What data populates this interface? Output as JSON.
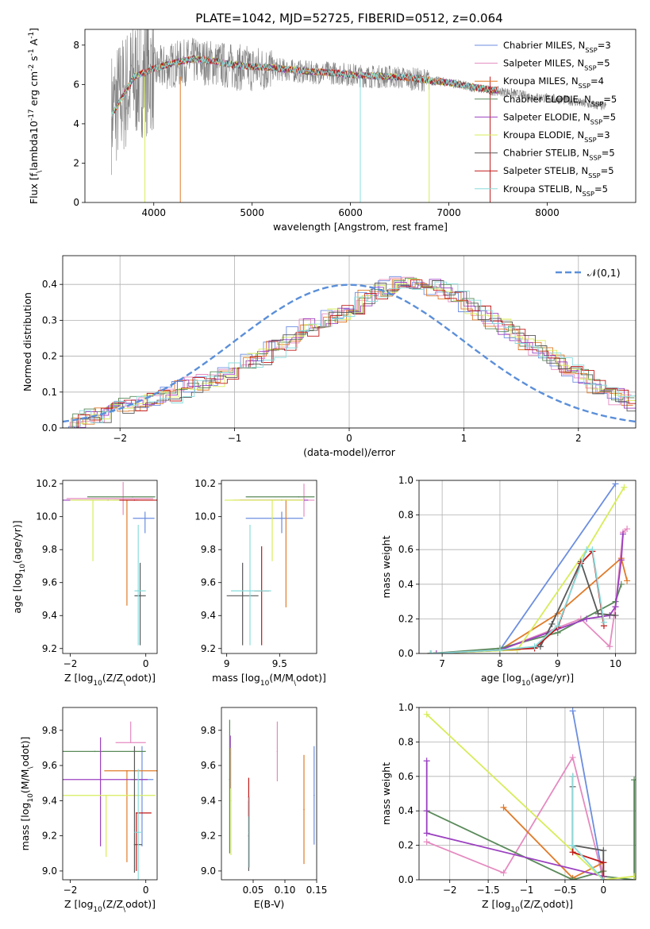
{
  "figure_title": "PLATE=1042, MJD=52725, FIBERID=0512, z=0.064",
  "model_colors": [
    "#6c8ee0",
    "#e58ac0",
    "#e07b2a",
    "#5a8a5a",
    "#9b40c0",
    "#d8ec5a",
    "#585858",
    "#c01818",
    "#88dcdc"
  ],
  "chart_data": [
    {
      "id": "spectrum",
      "type": "line",
      "title": "PLATE=1042, MJD=52725, FIBERID=0512, z=0.064",
      "xlabel": "wavelength [Angstrom, rest frame]",
      "ylabel": "Flux [f$_\\lambda$10$^{-17}$ erg cm$^{-2}$ s$^{-1}$ A$^{-1}$]",
      "xlim": [
        3300,
        8900
      ],
      "ylim": [
        0,
        8.8
      ],
      "xticks": [
        4000,
        5000,
        6000,
        7000,
        8000
      ],
      "yticks": [
        0,
        2,
        4,
        6,
        8
      ],
      "grid": false,
      "legend_position": "top-right",
      "data_series": {
        "name": "",
        "color": "#808080",
        "x": [
          3570,
          3800,
          4000,
          4200,
          4400,
          4600,
          4800,
          5000,
          5200,
          5400,
          5600,
          5800,
          6000,
          6200,
          6400,
          6600,
          6800,
          7000,
          7200,
          7400,
          7600,
          7800,
          8000,
          8200,
          8400,
          8600
        ],
        "y": [
          4.6,
          6.3,
          6.7,
          7.0,
          7.2,
          7.1,
          6.9,
          6.8,
          6.8,
          6.7,
          6.6,
          6.6,
          6.5,
          6.4,
          6.4,
          6.3,
          6.2,
          6.1,
          5.9,
          5.7,
          5.6,
          5.4,
          5.3,
          5.2,
          5.0,
          4.9
        ]
      },
      "model_curve": {
        "x": [
          3570,
          3800,
          4000,
          4200,
          4400,
          4600,
          4800,
          5000,
          5200,
          5400,
          5600,
          5800,
          6000,
          6200,
          6400,
          6600,
          6800,
          7000,
          7200,
          7400,
          7500
        ],
        "y": [
          4.4,
          6.4,
          6.8,
          7.1,
          7.3,
          7.2,
          7.0,
          6.9,
          6.85,
          6.75,
          6.65,
          6.6,
          6.5,
          6.45,
          6.4,
          6.35,
          6.2,
          6.1,
          5.9,
          5.75,
          5.7
        ]
      },
      "series_names": [
        "Chabrier MILES, N$_{SSP}$=3",
        "Salpeter MILES, N$_{SSP}$=5",
        "Kroupa MILES, N$_{SSP}$=4",
        "Chabrier ELODIE, N$_{SSP}$=5",
        "Salpeter ELODIE, N$_{SSP}$=5",
        "Kroupa ELODIE, N$_{SSP}$=3",
        "Chabrier STELIB, N$_{SSP}$=5",
        "Salpeter STELIB, N$_{SSP}$=5",
        "Kroupa STELIB, N$_{SSP}$=5"
      ]
    },
    {
      "id": "residuals",
      "type": "line",
      "xlabel": "(data-model)/error",
      "ylabel": "Normed distribution",
      "xlim": [
        -2.5,
        2.5
      ],
      "ylim": [
        0,
        0.48
      ],
      "xticks": [
        -2,
        -1,
        0,
        1,
        2
      ],
      "yticks": [
        0.0,
        0.1,
        0.2,
        0.3,
        0.4
      ],
      "grid": true,
      "legend_position": "top-right",
      "normal_curve": {
        "name": "$\\mathcal{N}(0,1)$",
        "color": "#5b8fd9"
      },
      "histogram_bins": [
        -2.5,
        2.5,
        0.1
      ],
      "histogram_values": [
        0.02,
        0.025,
        0.03,
        0.04,
        0.05,
        0.06,
        0.07,
        0.08,
        0.085,
        0.09,
        0.11,
        0.12,
        0.13,
        0.14,
        0.16,
        0.17,
        0.19,
        0.2,
        0.22,
        0.24,
        0.26,
        0.28,
        0.29,
        0.31,
        0.32,
        0.34,
        0.36,
        0.38,
        0.39,
        0.41,
        0.41,
        0.4,
        0.39,
        0.38,
        0.36,
        0.34,
        0.32,
        0.3,
        0.28,
        0.26,
        0.24,
        0.22,
        0.2,
        0.18,
        0.16,
        0.14,
        0.12,
        0.1,
        0.085,
        0.07
      ]
    },
    {
      "id": "age-vs-Z",
      "type": "scatter",
      "xlabel": "Z [log$_{10}$($Z/Z_\\odot$)]",
      "ylabel": "age  [log$_{10}$($age/yr$)]",
      "xlim": [
        -2.2,
        0.3
      ],
      "ylim": [
        9.17,
        10.22
      ],
      "xticks": [
        -2,
        0
      ],
      "yticks": [
        9.2,
        9.4,
        9.6,
        9.8,
        10.0,
        10.2
      ],
      "points": [
        {
          "x": -0.02,
          "y": 9.99,
          "xerr": [
            0.32,
            0.25
          ],
          "yerr": [
            0.09,
            0.04
          ]
        },
        {
          "x": -0.6,
          "y": 10.11,
          "xerr": [
            1.5,
            0.8
          ],
          "yerr": [
            0.1,
            0.1
          ]
        },
        {
          "x": -0.5,
          "y": 10.1,
          "xerr": [
            0.35,
            0.7
          ],
          "yerr": [
            0.64,
            0.0
          ]
        },
        {
          "x": -0.35,
          "y": 10.12,
          "xerr": [
            1.2,
            0.6
          ],
          "yerr": [
            0.0,
            0.0
          ]
        },
        {
          "x": -1.0,
          "y": 10.1,
          "xerr": [
            1.2,
            0.8
          ],
          "yerr": [
            0.0,
            0.0
          ]
        },
        {
          "x": -1.4,
          "y": 10.1,
          "xerr": [
            0.6,
            1.0
          ],
          "yerr": [
            0.37,
            0.0
          ]
        },
        {
          "x": -0.15,
          "y": 9.52,
          "xerr": [
            0.15,
            0.15
          ],
          "yerr": [
            0.3,
            0.2
          ]
        },
        {
          "x": -0.3,
          "y": 10.1,
          "xerr": [
            0.4,
            0.7
          ],
          "yerr": [
            0.0,
            0.0
          ]
        },
        {
          "x": -0.2,
          "y": 9.55,
          "xerr": [
            0.1,
            0.2
          ],
          "yerr": [
            0.33,
            0.4
          ]
        }
      ]
    },
    {
      "id": "age-vs-mass",
      "type": "scatter",
      "xlabel": "mass [log$_{10}$($M/M_\\odot$)]",
      "ylabel": "",
      "xlim": [
        8.95,
        9.85
      ],
      "ylim": [
        9.17,
        10.22
      ],
      "xticks": [
        9.0,
        9.5
      ],
      "yticks": [
        9.2,
        9.4,
        9.6,
        9.8,
        10.0,
        10.2
      ],
      "points": [
        {
          "x": 9.52,
          "y": 9.99,
          "xerr": [
            0.34,
            0.2
          ],
          "yerr": [
            0.09,
            0.04
          ]
        },
        {
          "x": 9.73,
          "y": 10.1,
          "xerr": [
            0.6,
            0.1
          ],
          "yerr": [
            0.1,
            0.1
          ]
        },
        {
          "x": 9.56,
          "y": 10.1,
          "xerr": [
            0.5,
            0.15
          ],
          "yerr": [
            0.65,
            0.0
          ]
        },
        {
          "x": 9.68,
          "y": 10.12,
          "xerr": [
            0.5,
            0.15
          ],
          "yerr": [
            0.0,
            0.0
          ]
        },
        {
          "x": 9.52,
          "y": 10.1,
          "xerr": [
            0.4,
            0.25
          ],
          "yerr": [
            0.0,
            0.0
          ]
        },
        {
          "x": 9.43,
          "y": 10.1,
          "xerr": [
            0.45,
            0.3
          ],
          "yerr": [
            0.37,
            0.0
          ]
        },
        {
          "x": 9.15,
          "y": 9.52,
          "xerr": [
            0.15,
            0.15
          ],
          "yerr": [
            0.3,
            0.2
          ]
        },
        {
          "x": 9.33,
          "y": 9.55,
          "xerr": [
            0.07,
            0.07
          ],
          "yerr": [
            0.33,
            0.27
          ]
        },
        {
          "x": 9.22,
          "y": 9.55,
          "xerr": [
            0.18,
            0.2
          ],
          "yerr": [
            0.33,
            0.4
          ]
        }
      ]
    },
    {
      "id": "weight-vs-age",
      "type": "line",
      "xlabel": "age  [log$_{10}$($age/yr$)]",
      "ylabel": "mass weight",
      "xlim": [
        6.6,
        10.35
      ],
      "ylim": [
        0,
        1.0
      ],
      "xticks": [
        7,
        8,
        9,
        10
      ],
      "yticks": [
        0.0,
        0.2,
        0.4,
        0.6,
        0.8,
        1.0
      ],
      "grid": true,
      "series": [
        {
          "x": [
            6.8,
            8.0,
            10.0
          ],
          "y": [
            0.0,
            0.02,
            0.98
          ]
        },
        {
          "x": [
            6.8,
            8.0,
            9.4,
            9.9,
            10.0,
            10.13,
            10.2
          ],
          "y": [
            0.0,
            0.02,
            0.2,
            0.04,
            0.27,
            0.7,
            0.72
          ]
        },
        {
          "x": [
            6.8,
            8.0,
            9.0,
            10.1,
            10.2
          ],
          "y": [
            0.0,
            0.02,
            0.23,
            0.55,
            0.42
          ]
        },
        {
          "x": [
            6.8,
            8.0,
            9.0,
            10.0,
            10.1
          ],
          "y": [
            0.0,
            0.03,
            0.12,
            0.3,
            0.4
          ]
        },
        {
          "x": [
            6.9,
            8.0,
            9.5,
            9.9,
            10.0,
            10.1,
            10.13
          ],
          "y": [
            0.0,
            0.02,
            0.2,
            0.22,
            0.27,
            0.54,
            0.69
          ]
        },
        {
          "x": [
            6.8,
            8.3,
            9.5,
            10.15
          ],
          "y": [
            0.0,
            0.02,
            0.6,
            0.96
          ]
        },
        {
          "x": [
            6.8,
            8.0,
            8.7,
            8.9,
            9.4,
            9.7,
            10.0
          ],
          "y": [
            0.0,
            0.02,
            0.04,
            0.17,
            0.53,
            0.23,
            0.22
          ]
        },
        {
          "x": [
            6.8,
            8.0,
            8.6,
            9.0,
            9.4,
            9.6,
            9.8
          ],
          "y": [
            0.0,
            0.02,
            0.03,
            0.15,
            0.52,
            0.59,
            0.16
          ]
        },
        {
          "x": [
            6.8,
            8.0,
            8.6,
            9.0,
            9.5,
            9.6,
            9.8
          ],
          "y": [
            0.0,
            0.02,
            0.04,
            0.16,
            0.6,
            0.6,
            0.18
          ]
        }
      ]
    },
    {
      "id": "mass-vs-Z",
      "type": "scatter",
      "xlabel": "Z [log$_{10}$($Z/Z_\\odot$)]",
      "ylabel": "mass [log$_{10}$($M/M_\\odot$)]",
      "xlim": [
        -2.2,
        0.3
      ],
      "ylim": [
        8.95,
        9.93
      ],
      "xticks": [
        -2,
        0
      ],
      "yticks": [
        9.0,
        9.2,
        9.4,
        9.6,
        9.8
      ],
      "points": [
        {
          "x": -0.1,
          "y": 9.52,
          "xerr": [
            0.3,
            0.3
          ],
          "yerr": [
            0.38,
            0.19
          ]
        },
        {
          "x": -0.4,
          "y": 9.73,
          "xerr": [
            0.4,
            0.4
          ],
          "yerr": [
            0.0,
            0.12
          ]
        },
        {
          "x": -0.5,
          "y": 9.57,
          "xerr": [
            0.6,
            0.85
          ],
          "yerr": [
            0.52,
            0.0
          ]
        },
        {
          "x": -1.35,
          "y": 9.68,
          "xerr": [
            1.8,
            1.35
          ],
          "yerr": [
            0.0,
            0.0
          ]
        },
        {
          "x": -1.2,
          "y": 9.52,
          "xerr": [
            1.15,
            1.25
          ],
          "yerr": [
            0.38,
            0.24
          ]
        },
        {
          "x": -1.05,
          "y": 9.43,
          "xerr": [
            1.25,
            1.3
          ],
          "yerr": [
            0.35,
            0.0
          ]
        },
        {
          "x": -0.3,
          "y": 9.15,
          "xerr": [
            0.0,
            0.2
          ],
          "yerr": [
            0.16,
            0.56
          ]
        },
        {
          "x": -0.25,
          "y": 9.33,
          "xerr": [
            0.0,
            0.4
          ],
          "yerr": [
            0.33,
            0.0
          ]
        },
        {
          "x": -0.2,
          "y": 9.22,
          "xerr": [
            0.1,
            0.1
          ],
          "yerr": [
            0.3,
            0.36
          ]
        }
      ]
    },
    {
      "id": "mass-vs-EBV",
      "type": "scatter",
      "xlabel": "E(B-V)",
      "ylabel": "",
      "xlim": [
        0.0,
        0.15
      ],
      "ylim": [
        8.95,
        9.93
      ],
      "xticks": [
        0.05,
        0.1,
        0.15
      ],
      "yticks": [
        9.0,
        9.2,
        9.4,
        9.6,
        9.8
      ],
      "points": [
        {
          "x": 0.146,
          "y": 9.43,
          "yerr": [
            0.28,
            0.28
          ]
        },
        {
          "x": 0.088,
          "y": 9.68,
          "yerr": [
            0.17,
            0.17
          ]
        },
        {
          "x": 0.13,
          "y": 9.35,
          "yerr": [
            0.31,
            0.31
          ]
        },
        {
          "x": 0.013,
          "y": 9.52,
          "yerr": [
            0.42,
            0.34
          ]
        },
        {
          "x": 0.014,
          "y": 9.67,
          "yerr": [
            0.2,
            0.1
          ]
        },
        {
          "x": 0.015,
          "y": 9.4,
          "yerr": [
            0.31,
            0.3
          ]
        },
        {
          "x": 0.043,
          "y": 9.2,
          "yerr": [
            0.2,
            0.2
          ]
        },
        {
          "x": 0.043,
          "y": 9.42,
          "yerr": [
            0.11,
            0.11
          ]
        },
        {
          "x": 0.044,
          "y": 9.22,
          "yerr": [
            0.2,
            0.2
          ]
        }
      ]
    },
    {
      "id": "weight-vs-Z",
      "type": "line",
      "xlabel": "Z [log$_{10}$($Z/Z_\\odot$)]",
      "ylabel": "mass weight",
      "xlim": [
        -2.4,
        0.42
      ],
      "ylim": [
        0,
        1.0
      ],
      "xticks": [
        -2.0,
        -1.5,
        -1.0,
        -0.5,
        0.0
      ],
      "yticks": [
        0.0,
        0.2,
        0.4,
        0.6,
        0.8,
        1.0
      ],
      "grid": true,
      "series": [
        {
          "x": [
            -0.4,
            0.0
          ],
          "y": [
            0.98,
            0.0
          ]
        },
        {
          "x": [
            -2.3,
            -1.3,
            -0.4,
            0.0
          ],
          "y": [
            0.22,
            0.04,
            0.71,
            0.0
          ]
        },
        {
          "x": [
            -1.3,
            -0.4,
            0.0
          ],
          "y": [
            0.42,
            0.01,
            0.1
          ]
        },
        {
          "x": [
            -2.3,
            -0.4,
            0.0,
            0.0,
            0.4,
            0.4
          ],
          "y": [
            0.4,
            0.0,
            0.05,
            0.02,
            0.0,
            0.58
          ]
        },
        {
          "x": [
            -2.3,
            -2.3,
            -2.3,
            0.0
          ],
          "y": [
            0.69,
            0.4,
            0.27,
            0.02
          ]
        },
        {
          "x": [
            -2.3,
            0.0,
            0.4
          ],
          "y": [
            0.96,
            0.0,
            0.02
          ]
        },
        {
          "x": [
            -0.4,
            -0.4,
            0.0,
            0.0,
            0.0
          ],
          "y": [
            0.54,
            0.2,
            0.17,
            0.1,
            0.0
          ]
        },
        {
          "x": [
            -0.4,
            -0.4,
            0.0,
            0.0
          ],
          "y": [
            0.6,
            0.16,
            0.1,
            0.0
          ]
        },
        {
          "x": [
            -0.4,
            -0.4,
            0.0
          ],
          "y": [
            0.6,
            0.2,
            0.0
          ]
        }
      ]
    }
  ]
}
